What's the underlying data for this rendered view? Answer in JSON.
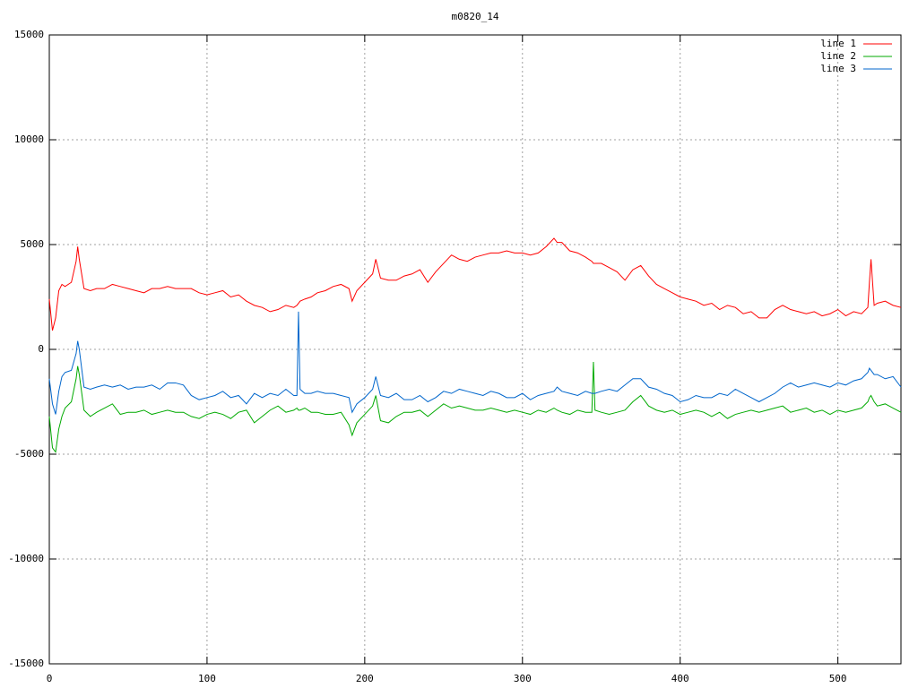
{
  "chart_data": {
    "type": "line",
    "title": "m0820_14",
    "x": [
      0,
      2,
      4,
      6,
      8,
      10,
      14,
      17,
      18,
      19,
      22,
      26,
      30,
      35,
      40,
      45,
      50,
      55,
      60,
      65,
      70,
      75,
      80,
      85,
      90,
      95,
      100,
      105,
      110,
      115,
      120,
      125,
      130,
      135,
      140,
      145,
      150,
      155,
      157,
      158,
      159,
      162,
      166,
      170,
      175,
      180,
      185,
      190,
      192,
      195,
      200,
      205,
      207,
      210,
      215,
      220,
      225,
      230,
      235,
      240,
      245,
      250,
      255,
      260,
      265,
      270,
      275,
      280,
      285,
      290,
      295,
      300,
      305,
      310,
      315,
      320,
      322,
      325,
      330,
      335,
      340,
      344,
      345,
      346,
      350,
      355,
      360,
      365,
      370,
      375,
      380,
      385,
      390,
      395,
      400,
      405,
      410,
      415,
      420,
      425,
      430,
      435,
      440,
      445,
      450,
      455,
      460,
      465,
      470,
      475,
      480,
      485,
      490,
      495,
      500,
      505,
      510,
      515,
      519,
      520,
      521,
      523,
      525,
      530,
      535,
      540
    ],
    "series": [
      {
        "name": "line 1",
        "color": "#ff0000",
        "values": [
          2400,
          900,
          1500,
          2800,
          3100,
          3000,
          3200,
          4200,
          4900,
          4300,
          2900,
          2800,
          2900,
          2900,
          3100,
          3000,
          2900,
          2800,
          2700,
          2900,
          2900,
          3000,
          2900,
          2900,
          2900,
          2700,
          2600,
          2700,
          2800,
          2500,
          2600,
          2300,
          2100,
          2000,
          1800,
          1900,
          2100,
          2000,
          2100,
          2200,
          2300,
          2400,
          2500,
          2700,
          2800,
          3000,
          3100,
          2900,
          2300,
          2800,
          3200,
          3600,
          4300,
          3400,
          3300,
          3300,
          3500,
          3600,
          3800,
          3200,
          3700,
          4100,
          4500,
          4300,
          4200,
          4400,
          4500,
          4600,
          4600,
          4700,
          4600,
          4600,
          4500,
          4600,
          4900,
          5300,
          5100,
          5100,
          4700,
          4600,
          4400,
          4200,
          4100,
          4100,
          4100,
          3900,
          3700,
          3300,
          3800,
          4000,
          3500,
          3100,
          2900,
          2700,
          2500,
          2400,
          2300,
          2100,
          2200,
          1900,
          2100,
          2000,
          1700,
          1800,
          1500,
          1500,
          1900,
          2100,
          1900,
          1800,
          1700,
          1800,
          1600,
          1700,
          1900,
          1600,
          1800,
          1700,
          2000,
          3200,
          4300,
          2100,
          2200,
          2300,
          2100,
          2000
        ]
      },
      {
        "name": "line 2",
        "color": "#00aa00",
        "values": [
          -3200,
          -4700,
          -4900,
          -3800,
          -3200,
          -2800,
          -2500,
          -1400,
          -800,
          -1200,
          -2900,
          -3200,
          -3000,
          -2800,
          -2600,
          -3100,
          -3000,
          -3000,
          -2900,
          -3100,
          -3000,
          -2900,
          -3000,
          -3000,
          -3200,
          -3300,
          -3100,
          -3000,
          -3100,
          -3300,
          -3000,
          -2900,
          -3500,
          -3200,
          -2900,
          -2700,
          -3000,
          -2900,
          -2800,
          -2900,
          -2900,
          -2800,
          -3000,
          -3000,
          -3100,
          -3100,
          -3000,
          -3600,
          -4100,
          -3500,
          -3100,
          -2700,
          -2200,
          -3400,
          -3500,
          -3200,
          -3000,
          -3000,
          -2900,
          -3200,
          -2900,
          -2600,
          -2800,
          -2700,
          -2800,
          -2900,
          -2900,
          -2800,
          -2900,
          -3000,
          -2900,
          -3000,
          -3100,
          -2900,
          -3000,
          -2800,
          -2900,
          -3000,
          -3100,
          -2900,
          -3000,
          -3000,
          -600,
          -2900,
          -3000,
          -3100,
          -3000,
          -2900,
          -2500,
          -2200,
          -2700,
          -2900,
          -3000,
          -2900,
          -3100,
          -3000,
          -2900,
          -3000,
          -3200,
          -3000,
          -3300,
          -3100,
          -3000,
          -2900,
          -3000,
          -2900,
          -2800,
          -2700,
          -3000,
          -2900,
          -2800,
          -3000,
          -2900,
          -3100,
          -2900,
          -3000,
          -2900,
          -2800,
          -2500,
          -2300,
          -2200,
          -2500,
          -2700,
          -2600,
          -2800,
          -3000
        ]
      },
      {
        "name": "line 3",
        "color": "#0066cc",
        "values": [
          -1400,
          -2600,
          -3100,
          -2000,
          -1300,
          -1100,
          -1000,
          -200,
          400,
          0,
          -1800,
          -1900,
          -1800,
          -1700,
          -1800,
          -1700,
          -1900,
          -1800,
          -1800,
          -1700,
          -1900,
          -1600,
          -1600,
          -1700,
          -2200,
          -2400,
          -2300,
          -2200,
          -2000,
          -2300,
          -2200,
          -2600,
          -2100,
          -2300,
          -2100,
          -2200,
          -1900,
          -2200,
          -2200,
          1800,
          -1900,
          -2100,
          -2100,
          -2000,
          -2100,
          -2100,
          -2200,
          -2300,
          -3000,
          -2600,
          -2300,
          -1900,
          -1300,
          -2200,
          -2300,
          -2100,
          -2400,
          -2400,
          -2200,
          -2500,
          -2300,
          -2000,
          -2100,
          -1900,
          -2000,
          -2100,
          -2200,
          -2000,
          -2100,
          -2300,
          -2300,
          -2100,
          -2400,
          -2200,
          -2100,
          -2000,
          -1800,
          -2000,
          -2100,
          -2200,
          -2000,
          -2100,
          -2100,
          -2100,
          -2000,
          -1900,
          -2000,
          -1700,
          -1400,
          -1400,
          -1800,
          -1900,
          -2100,
          -2200,
          -2500,
          -2400,
          -2200,
          -2300,
          -2300,
          -2100,
          -2200,
          -1900,
          -2100,
          -2300,
          -2500,
          -2300,
          -2100,
          -1800,
          -1600,
          -1800,
          -1700,
          -1600,
          -1700,
          -1800,
          -1600,
          -1700,
          -1500,
          -1400,
          -1100,
          -900,
          -1000,
          -1200,
          -1200,
          -1400,
          -1300,
          -1800
        ]
      }
    ],
    "xlim": [
      0,
      540
    ],
    "xticks": [
      0,
      100,
      200,
      300,
      400,
      500
    ],
    "ylim": [
      -15000,
      15000
    ],
    "yticks": [
      -15000,
      -10000,
      -5000,
      0,
      5000,
      10000,
      15000
    ],
    "grid": true,
    "legend": "top-right"
  }
}
